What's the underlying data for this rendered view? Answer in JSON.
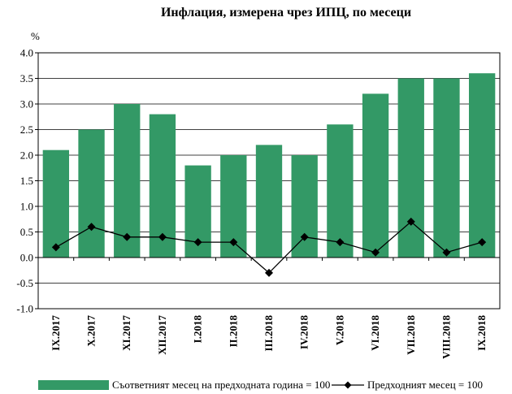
{
  "chart_data": {
    "type": "bar",
    "title": "Инфлация, измерена чрез ИПЦ, по месеци",
    "unit_label": "%",
    "categories": [
      "IX.2017",
      "X.2017",
      "XI.2017",
      "XII.2017",
      "I.2018",
      "II.2018",
      "III.2018",
      "IV.2018",
      "V.2018",
      "VI.2018",
      "VII.2018",
      "VIII.2018",
      "IX.2018"
    ],
    "series": [
      {
        "name": "Съответният месец на предходната година = 100",
        "type": "bar",
        "color": "#339966",
        "values": [
          2.1,
          2.5,
          3.0,
          2.8,
          1.8,
          2.0,
          2.2,
          2.0,
          2.6,
          3.2,
          3.5,
          3.5,
          3.6
        ]
      },
      {
        "name": "Предходният месец = 100",
        "type": "line",
        "color": "#000000",
        "values": [
          0.2,
          0.6,
          0.4,
          0.4,
          0.3,
          0.3,
          -0.3,
          0.4,
          0.3,
          0.1,
          0.7,
          0.1,
          0.3
        ]
      }
    ],
    "ylim": [
      -1.0,
      4.0
    ],
    "yticks": [
      "4.0",
      "3.5",
      "3.0",
      "2.5",
      "2.0",
      "1.5",
      "1.0",
      "0.5",
      "0.0",
      "-0.5",
      "-1.0"
    ],
    "ytick_values": [
      4.0,
      3.5,
      3.0,
      2.5,
      2.0,
      1.5,
      1.0,
      0.5,
      0.0,
      -0.5,
      -1.0
    ],
    "grid": true,
    "legend_position": "bottom",
    "plot_background": "#ffffff",
    "grid_color": "#000000"
  }
}
